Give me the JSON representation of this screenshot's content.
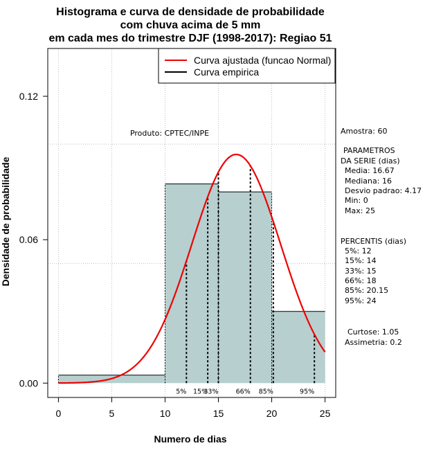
{
  "chart_data": {
    "type": "bar",
    "title_lines": [
      "Histograma e curva de densidade de probabilidade",
      "com chuva acima de 5 mm",
      "em cada mes do trimestre DJF (1998-2017): Regiao 51"
    ],
    "xlabel": "Numero de dias",
    "ylabel": "Densidade de probabilidade",
    "xlim": [
      -1,
      26
    ],
    "ylim": [
      -0.006,
      0.14
    ],
    "xticks": [
      0,
      5,
      10,
      15,
      20,
      25
    ],
    "yticks": [
      0.0,
      0.06,
      0.12
    ],
    "ytick_labels": [
      "0.00",
      "0.06",
      "0.12"
    ],
    "grid_x": [
      0,
      5,
      10,
      15,
      20,
      25
    ],
    "grid_y": [
      0.05,
      0.1
    ],
    "bins": [
      {
        "start": 0,
        "end": 10,
        "density": 0.00333
      },
      {
        "start": 10,
        "end": 15,
        "density": 0.08333
      },
      {
        "start": 15,
        "end": 20,
        "density": 0.08
      },
      {
        "start": 20,
        "end": 25,
        "density": 0.03
      }
    ],
    "bar_color": "#b7cfcf",
    "normal_curve": {
      "mean": 16.67,
      "sd": 4.17,
      "x_from": 0,
      "x_to": 25,
      "color": "#ee0000"
    },
    "percentiles": [
      {
        "label": "5%",
        "x": 12
      },
      {
        "label": "15%",
        "x": 14
      },
      {
        "label": "33%",
        "x": 15
      },
      {
        "label": "66%",
        "x": 18
      },
      {
        "label": "85%",
        "x": 20.15
      },
      {
        "label": "95%",
        "x": 24
      }
    ],
    "legend": [
      {
        "label": "Curva ajustada (funcao Normal)",
        "color": "#ee0000"
      },
      {
        "label": "Curva empirica",
        "color": "#000000"
      }
    ],
    "legend_position": "top-right",
    "credit": "Produto: CPTEC/INPE"
  },
  "stats_panel": {
    "amostra": "Amostra: 60",
    "params_title_1": "PARAMETROS",
    "params_title_2": "DA SERIE (dias)",
    "params": [
      "Media: 16.67",
      "Mediana: 16",
      "Desvio padrao: 4.17",
      "Min: 0",
      "Max: 25"
    ],
    "percentis_title": "PERCENTIS (dias)",
    "percentis": [
      "5%: 12",
      "15%: 14",
      "33%: 15",
      "66%: 18",
      "85%: 20.15",
      "95%: 24"
    ],
    "curtose": "Curtose: 1.05",
    "assimetria": "Assimetria: 0.2"
  }
}
